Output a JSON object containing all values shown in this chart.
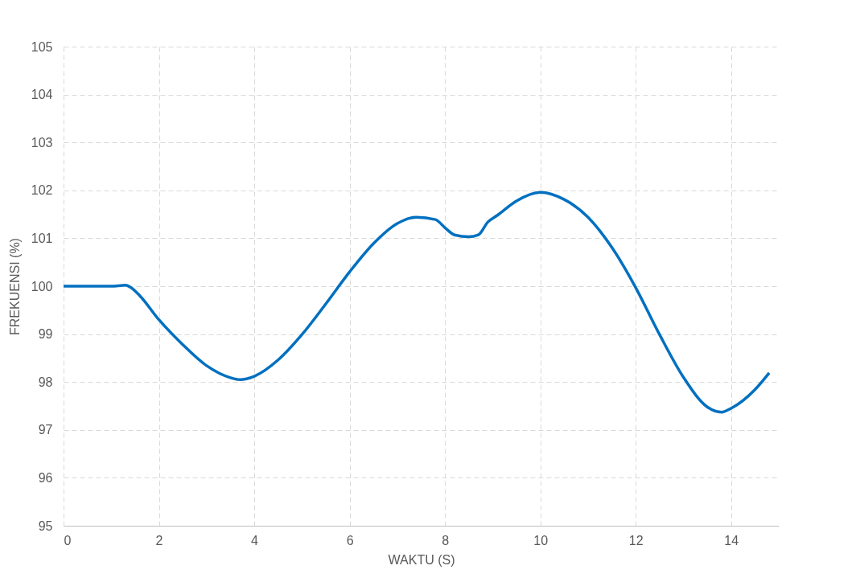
{
  "chart_data": {
    "type": "line",
    "xlabel": "WAKTU (S)",
    "ylabel": "FREKUENSI (%)",
    "x": [
      0,
      1,
      1.3,
      1.4,
      1.6,
      2,
      2.5,
      3,
      3.5,
      3.7,
      4,
      4.5,
      5,
      5.5,
      6,
      6.5,
      7,
      7.4,
      7.8,
      8,
      8.2,
      8.5,
      8.7,
      8.9,
      9.1,
      9.5,
      10,
      10.5,
      11,
      11.5,
      12,
      12.5,
      13,
      13.5,
      13.8,
      14,
      14.5,
      14.8
    ],
    "series": [
      {
        "color": "#0070c0",
        "values": [
          100,
          100,
          100.02,
          99.98,
          99.8,
          99.3,
          98.78,
          98.34,
          98.09,
          98.05,
          98.12,
          98.46,
          98.99,
          99.63,
          100.3,
          100.89,
          101.31,
          101.44,
          101.39,
          101.22,
          101.07,
          101.03,
          101.07,
          101.34,
          101.48,
          101.78,
          101.96,
          101.81,
          101.44,
          100.81,
          99.97,
          98.99,
          98.1,
          97.48,
          97.37,
          97.45,
          97.84,
          98.19
        ]
      }
    ],
    "xlim": [
      0,
      15
    ],
    "xticks": [
      0,
      2,
      4,
      6,
      8,
      10,
      12,
      14
    ],
    "ylim": [
      95,
      105
    ],
    "yticks": [
      95,
      96,
      97,
      98,
      99,
      100,
      101,
      102,
      103,
      104,
      105
    ],
    "grid": true,
    "line_style": "solid",
    "marker": "none"
  }
}
